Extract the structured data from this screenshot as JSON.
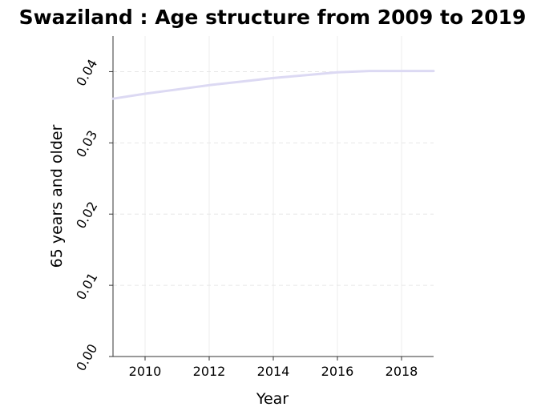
{
  "chart_data": {
    "type": "line",
    "title": "Swaziland : Age structure from 2009 to 2019",
    "xlabel": "Year",
    "ylabel": "65 years and older",
    "xlim": [
      2009,
      2019
    ],
    "ylim": [
      0,
      0.045
    ],
    "x_ticks": [
      2010,
      2012,
      2014,
      2016,
      2018
    ],
    "x_tick_labels": [
      "2010",
      "2012",
      "2014",
      "2016",
      "2018"
    ],
    "y_ticks": [
      0,
      0.01,
      0.02,
      0.03,
      0.04
    ],
    "y_tick_labels": [
      "0.00",
      "0.01",
      "0.02",
      "0.03",
      "0.04"
    ],
    "grid": true,
    "series": [
      {
        "color": "#dcd9f3",
        "x": [
          2009,
          2010,
          2011,
          2012,
          2013,
          2014,
          2015,
          2016,
          2017,
          2018,
          2019
        ],
        "values": [
          0.0362,
          0.0369,
          0.0375,
          0.0381,
          0.0386,
          0.0391,
          0.0395,
          0.0399,
          0.0401,
          0.0401,
          0.0401
        ]
      }
    ]
  }
}
